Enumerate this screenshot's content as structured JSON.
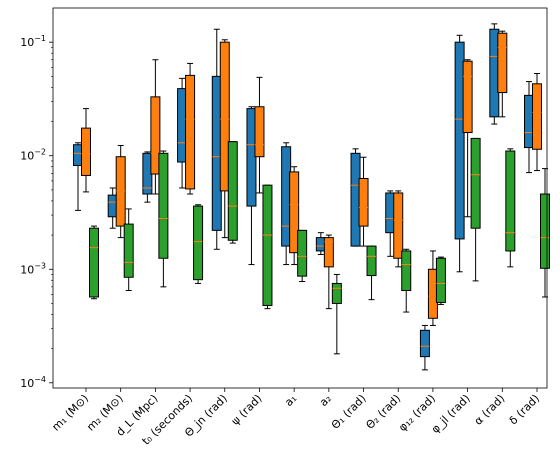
{
  "chart_data": {
    "type": "box",
    "yscale": "log",
    "ylim": [
      9e-05,
      0.2
    ],
    "yticks": [
      {
        "value": 0.0001,
        "base": "10",
        "exp": "−4"
      },
      {
        "value": 0.001,
        "base": "10",
        "exp": "−3"
      },
      {
        "value": 0.01,
        "base": "10",
        "exp": "−2"
      },
      {
        "value": 0.1,
        "base": "10",
        "exp": "−1"
      }
    ],
    "categories": [
      "m₁ (M⊙)",
      "m₂ (M⊙)",
      "d_L (Mpc)",
      "t₀ (seconds)",
      "Θ_jn (rad)",
      "ψ (rad)",
      "a₁",
      "a₂",
      "Θ₁ (rad)",
      "Θ₂ (rad)",
      "φ₁₂ (rad)",
      "φ_jl (rad)",
      "α (rad)",
      "δ (rad)"
    ],
    "series": [
      {
        "color": "#1f77b4",
        "boxes": [
          {
            "whislo": 0.0033,
            "q1": 0.0082,
            "med": 0.0105,
            "q3": 0.0125,
            "whishi": 0.013
          },
          {
            "whislo": 0.0023,
            "q1": 0.0029,
            "med": 0.0039,
            "q3": 0.0045,
            "whishi": 0.0052
          },
          {
            "whislo": 0.0039,
            "q1": 0.0046,
            "med": 0.0052,
            "q3": 0.0105,
            "whishi": 0.0108
          },
          {
            "whislo": 0.0052,
            "q1": 0.0088,
            "med": 0.013,
            "q3": 0.039,
            "whishi": 0.048
          },
          {
            "whislo": 0.0015,
            "q1": 0.0022,
            "med": 0.0098,
            "q3": 0.05,
            "whishi": 0.13
          },
          {
            "whislo": 0.0011,
            "q1": 0.0036,
            "med": 0.0125,
            "q3": 0.026,
            "whishi": 0.027
          },
          {
            "whislo": 0.0011,
            "q1": 0.0016,
            "med": 0.0024,
            "q3": 0.012,
            "whishi": 0.013
          },
          {
            "whislo": 0.00135,
            "q1": 0.00145,
            "med": 0.0016,
            "q3": 0.0019,
            "whishi": 0.0021
          },
          {
            "whislo": 0.0016,
            "q1": 0.0016,
            "med": 0.0055,
            "q3": 0.0105,
            "whishi": 0.0115
          },
          {
            "whislo": 0.0013,
            "q1": 0.0021,
            "med": 0.0028,
            "q3": 0.0047,
            "whishi": 0.0049
          },
          {
            "whislo": 0.00013,
            "q1": 0.00017,
            "med": 0.00021,
            "q3": 0.00029,
            "whishi": 0.00032
          },
          {
            "whislo": 0.00095,
            "q1": 0.00185,
            "med": 0.021,
            "q3": 0.1,
            "whishi": 0.115
          },
          {
            "whislo": 0.019,
            "q1": 0.022,
            "med": 0.075,
            "q3": 0.13,
            "whishi": 0.145
          },
          {
            "whislo": 0.0071,
            "q1": 0.0118,
            "med": 0.016,
            "q3": 0.034,
            "whishi": 0.045
          }
        ]
      },
      {
        "color": "#ff7f0e",
        "boxes": [
          {
            "whislo": 0.0048,
            "q1": 0.0067,
            "med": 0.0104,
            "q3": 0.0175,
            "whishi": 0.026
          },
          {
            "whislo": 0.0019,
            "q1": 0.0024,
            "med": 0.0049,
            "q3": 0.0098,
            "whishi": 0.0123
          },
          {
            "whislo": 0.0046,
            "q1": 0.0069,
            "med": 0.0105,
            "q3": 0.033,
            "whishi": 0.07
          },
          {
            "whislo": 0.0046,
            "q1": 0.0051,
            "med": 0.021,
            "q3": 0.051,
            "whishi": 0.065
          },
          {
            "whislo": 0.0019,
            "q1": 0.0049,
            "med": 0.021,
            "q3": 0.1,
            "whishi": 0.105
          },
          {
            "whislo": 0.0047,
            "q1": 0.0098,
            "med": 0.0125,
            "q3": 0.027,
            "whishi": 0.049
          },
          {
            "whislo": 0.0011,
            "q1": 0.0014,
            "med": 0.0037,
            "q3": 0.0072,
            "whishi": 0.008
          },
          {
            "whislo": 0.00045,
            "q1": 0.00105,
            "med": 0.00175,
            "q3": 0.0019,
            "whishi": 0.002
          },
          {
            "whislo": 0.0016,
            "q1": 0.0024,
            "med": 0.0035,
            "q3": 0.0063,
            "whishi": 0.0097
          },
          {
            "whislo": 0.00105,
            "q1": 0.00125,
            "med": 0.0027,
            "q3": 0.0047,
            "whishi": 0.0049
          },
          {
            "whislo": 0.00032,
            "q1": 0.00037,
            "med": 0.00058,
            "q3": 0.001,
            "whishi": 0.00145
          },
          {
            "whislo": 0.0029,
            "q1": 0.016,
            "med": 0.05,
            "q3": 0.068,
            "whishi": 0.07
          },
          {
            "whislo": 0.022,
            "q1": 0.036,
            "med": 0.09,
            "q3": 0.12,
            "whishi": 0.125
          },
          {
            "whislo": 0.0074,
            "q1": 0.0114,
            "med": 0.024,
            "q3": 0.043,
            "whishi": 0.053
          }
        ]
      },
      {
        "color": "#2ca02c",
        "boxes": [
          {
            "whislo": 0.00055,
            "q1": 0.00057,
            "med": 0.00155,
            "q3": 0.0023,
            "whishi": 0.0024
          },
          {
            "whislo": 0.00065,
            "q1": 0.00085,
            "med": 0.00115,
            "q3": 0.0025,
            "whishi": 0.0034
          },
          {
            "whislo": 0.0007,
            "q1": 0.00125,
            "med": 0.0028,
            "q3": 0.0105,
            "whishi": 0.011
          },
          {
            "whislo": 0.00075,
            "q1": 0.00081,
            "med": 0.00175,
            "q3": 0.0036,
            "whishi": 0.0037
          },
          {
            "whislo": 0.0017,
            "q1": 0.0018,
            "med": 0.0036,
            "q3": 0.0133,
            "whishi": 0.0133
          },
          {
            "whislo": 0.00045,
            "q1": 0.00048,
            "med": 0.002,
            "q3": 0.0055,
            "whishi": 0.0055
          },
          {
            "whislo": 0.00078,
            "q1": 0.00087,
            "med": 0.0013,
            "q3": 0.0022,
            "whishi": 0.0022
          },
          {
            "whislo": 0.00018,
            "q1": 0.0005,
            "med": 0.00068,
            "q3": 0.00075,
            "whishi": 0.0009
          },
          {
            "whislo": 0.00054,
            "q1": 0.00088,
            "med": 0.0013,
            "q3": 0.0016,
            "whishi": 0.0016
          },
          {
            "whislo": 0.00042,
            "q1": 0.00065,
            "med": 0.0011,
            "q3": 0.00145,
            "whishi": 0.0015
          },
          {
            "whislo": 0.00049,
            "q1": 0.00051,
            "med": 0.00075,
            "q3": 0.00125,
            "whishi": 0.00128
          },
          {
            "whislo": 0.00079,
            "q1": 0.0023,
            "med": 0.0068,
            "q3": 0.0142,
            "whishi": 0.0142
          },
          {
            "whislo": 0.00105,
            "q1": 0.00145,
            "med": 0.0021,
            "q3": 0.011,
            "whishi": 0.0115
          },
          {
            "whislo": 0.00057,
            "q1": 0.00102,
            "med": 0.0019,
            "q3": 0.0046,
            "whishi": 0.0077
          }
        ]
      }
    ],
    "median_color": "#ff7f0e",
    "legend": "none",
    "grid": false
  }
}
